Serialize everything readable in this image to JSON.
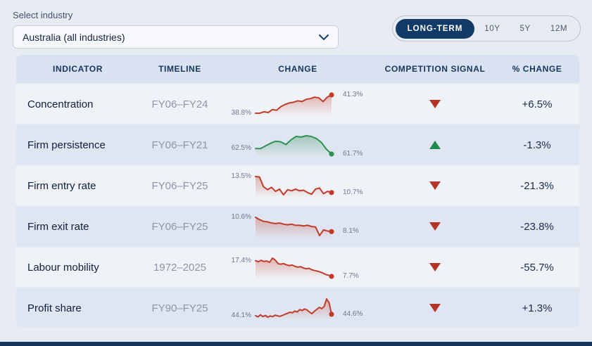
{
  "page": {
    "background": "#e7ecf3",
    "bottom_bar_color": "#14345e"
  },
  "filters": {
    "industry_label": "Select industry",
    "industry_value": "Australia (all industries)",
    "periods": [
      {
        "label": "LONG-TERM",
        "selected": true
      },
      {
        "label": "10Y",
        "selected": false
      },
      {
        "label": "5Y",
        "selected": false
      },
      {
        "label": "12M",
        "selected": false
      }
    ]
  },
  "table": {
    "headers": [
      "INDICATOR",
      "TIMELINE",
      "CHANGE",
      "COMPETITION SIGNAL",
      "% CHANGE"
    ],
    "rows": [
      {
        "indicator": "Concentration",
        "timeline": "FY06–FY24",
        "start_label": "38.8%",
        "end_label": "41.3%",
        "line_color": "#c23b2a",
        "signal": "down",
        "signal_color": "#b5342a",
        "pct_change": "+6.5%"
      },
      {
        "indicator": "Firm persistence",
        "timeline": "FY06–FY21",
        "start_label": "62.5%",
        "end_label": "61.7%",
        "line_color": "#2e9254",
        "signal": "up",
        "signal_color": "#1f8a4d",
        "pct_change": "-1.3%"
      },
      {
        "indicator": "Firm entry rate",
        "timeline": "FY06–FY25",
        "start_label": "13.5%",
        "end_label": "10.7%",
        "line_color": "#c23b2a",
        "signal": "down",
        "signal_color": "#b5342a",
        "pct_change": "-21.3%"
      },
      {
        "indicator": "Firm exit rate",
        "timeline": "FY06–FY25",
        "start_label": "10.6%",
        "end_label": "8.1%",
        "line_color": "#c23b2a",
        "signal": "down",
        "signal_color": "#b5342a",
        "pct_change": "-23.8%"
      },
      {
        "indicator": "Labour mobility",
        "timeline": "1972–2025",
        "start_label": "17.4%",
        "end_label": "7.7%",
        "line_color": "#c23b2a",
        "signal": "down",
        "signal_color": "#b5342a",
        "pct_change": "-55.7%"
      },
      {
        "indicator": "Profit share",
        "timeline": "FY90–FY25",
        "start_label": "44.1%",
        "end_label": "44.6%",
        "line_color": "#c23b2a",
        "signal": "down",
        "signal_color": "#b5342a",
        "pct_change": "+1.3%"
      }
    ]
  },
  "chart_data": [
    {
      "type": "line",
      "title": "Concentration",
      "x_range": "FY06–FY24",
      "unit": "%",
      "start_value": 38.8,
      "end_value": 41.3,
      "color": "#c23b2a",
      "values": [
        38.8,
        38.8,
        39.0,
        38.9,
        39.3,
        39.2,
        39.7,
        40.0,
        40.2,
        40.3,
        40.5,
        40.4,
        40.7,
        40.8,
        41.0,
        40.9,
        40.4,
        41.0,
        41.3
      ]
    },
    {
      "type": "line",
      "title": "Firm persistence",
      "x_range": "FY06–FY21",
      "unit": "%",
      "start_value": 62.5,
      "end_value": 61.7,
      "color": "#2e9254",
      "values": [
        62.5,
        62.5,
        62.9,
        63.3,
        63.6,
        63.5,
        63.1,
        63.8,
        64.3,
        64.2,
        64.4,
        64.3,
        64.0,
        63.4,
        62.4,
        61.7
      ]
    },
    {
      "type": "line",
      "title": "Firm entry rate",
      "x_range": "FY06–FY25",
      "unit": "%",
      "start_value": 13.5,
      "end_value": 10.7,
      "color": "#c23b2a",
      "values": [
        13.5,
        13.4,
        11.7,
        11.2,
        11.6,
        10.9,
        11.3,
        10.3,
        11.2,
        11.0,
        11.3,
        11.0,
        11.1,
        10.7,
        10.4,
        11.3,
        11.5,
        10.5,
        10.9,
        10.7
      ]
    },
    {
      "type": "line",
      "title": "Firm exit rate",
      "x_range": "FY06–FY25",
      "unit": "%",
      "start_value": 10.6,
      "end_value": 8.1,
      "color": "#c23b2a",
      "values": [
        10.6,
        10.2,
        9.9,
        9.8,
        9.6,
        9.5,
        9.6,
        9.4,
        9.3,
        9.4,
        9.2,
        9.2,
        9.1,
        9.2,
        9.0,
        8.9,
        7.4,
        8.4,
        8.2,
        8.1
      ]
    },
    {
      "type": "line",
      "title": "Labour mobility",
      "x_range": "1972–2025",
      "unit": "%",
      "start_value": 17.4,
      "end_value": 7.7,
      "color": "#c23b2a",
      "values": [
        17.4,
        16.8,
        17.6,
        16.9,
        17.2,
        16.4,
        19.0,
        17.8,
        15.6,
        15.2,
        15.6,
        14.8,
        14.4,
        14.7,
        13.9,
        13.4,
        13.7,
        12.9,
        12.4,
        12.7,
        11.8,
        11.3,
        10.9,
        10.4,
        9.7,
        8.8,
        8.4,
        7.7
      ]
    },
    {
      "type": "line",
      "title": "Profit share",
      "x_range": "FY90–FY25",
      "unit": "%",
      "start_value": 44.1,
      "end_value": 44.6,
      "color": "#c23b2a",
      "values": [
        44.1,
        43.7,
        44.4,
        43.8,
        44.2,
        43.6,
        44.0,
        43.8,
        44.3,
        44.0,
        43.9,
        44.2,
        44.6,
        44.9,
        45.3,
        45.1,
        45.7,
        45.4,
        46.2,
        45.9,
        46.4,
        46.1,
        45.4,
        44.8,
        45.6,
        46.3,
        47.0,
        46.5,
        47.3,
        49.9,
        48.6,
        44.6
      ]
    }
  ]
}
